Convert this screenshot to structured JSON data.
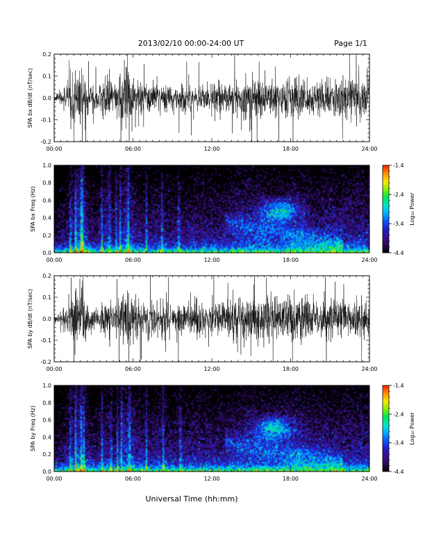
{
  "header": {
    "title": "2013/02/10  00:00-24:00 UT",
    "page": "Page 1/1"
  },
  "xlabel": "Universal Time (hh:mm)",
  "colors": {
    "trace": "#000000",
    "colormap": [
      "#000000",
      "#2a0a55",
      "#3a1290",
      "#2020c8",
      "#0a5aff",
      "#00b4ff",
      "#00e6c8",
      "#00e650",
      "#8cf000",
      "#ffe600",
      "#ff8c00",
      "#ff1e00"
    ]
  },
  "chart_data": [
    {
      "type": "line",
      "ylabel": "SPA bx dB/dt (nT/sec)",
      "xlim": [
        0,
        24
      ],
      "ylim": [
        -0.2,
        0.2
      ],
      "x_ticks": [
        "00:00",
        "06:00",
        "12:00",
        "18:00",
        "24:00"
      ],
      "x_tick_values": [
        0,
        6,
        12,
        18,
        24
      ],
      "y_ticks": [
        "-0.2",
        "-0.1",
        "0.0",
        "0.1",
        "0.2"
      ],
      "y_tick_values": [
        -0.2,
        -0.1,
        0.0,
        0.1,
        0.2
      ],
      "envelope": {
        "hours": [
          0,
          0.5,
          1,
          1.5,
          1.8,
          2.2,
          2.6,
          3.2,
          4,
          4.6,
          5.2,
          5.6,
          6.2,
          7,
          8,
          9,
          10,
          11,
          12,
          13,
          14,
          15,
          16,
          17,
          18,
          19,
          20,
          21,
          22,
          23,
          24
        ],
        "amplitude": [
          0.01,
          0.04,
          0.07,
          0.14,
          0.2,
          0.2,
          0.09,
          0.06,
          0.14,
          0.07,
          0.15,
          0.2,
          0.09,
          0.08,
          0.1,
          0.07,
          0.08,
          0.09,
          0.09,
          0.09,
          0.12,
          0.13,
          0.13,
          0.1,
          0.13,
          0.14,
          0.1,
          0.12,
          0.12,
          0.12,
          0.12
        ]
      }
    },
    {
      "type": "heatmap",
      "ylabel": "SPA bx Freq (Hz)",
      "xlim": [
        0,
        24
      ],
      "ylim": [
        0,
        1.0
      ],
      "x_ticks": [
        "00:00",
        "06:00",
        "12:00",
        "18:00",
        "24:00"
      ],
      "x_tick_values": [
        0,
        6,
        12,
        18,
        24
      ],
      "y_ticks": [
        "0.0",
        "0.2",
        "0.4",
        "0.6",
        "0.8",
        "1.0"
      ],
      "y_tick_values": [
        0,
        0.2,
        0.4,
        0.6,
        0.8,
        1.0
      ],
      "colorbar": {
        "label": "Log₁₀ Power",
        "range": [
          -4.4,
          -1.4
        ],
        "ticks": [
          "-1.4",
          "-2.4",
          "-3.4",
          "-4.4"
        ],
        "tick_values": [
          -1.4,
          -2.4,
          -3.4,
          -4.4
        ]
      },
      "features": {
        "vertical_bursts_hours": [
          1.2,
          1.6,
          2.0,
          2.1,
          3.6,
          4.2,
          4.7,
          5.0,
          5.6,
          7.0,
          8.2,
          9.5
        ],
        "enhanced_blob": {
          "hour": 17.2,
          "freq_hz": 0.48,
          "log_power": -2.6
        }
      }
    },
    {
      "type": "line",
      "ylabel": "SPA by dB/dt (nT/sec)",
      "xlim": [
        0,
        24
      ],
      "ylim": [
        -0.2,
        0.2
      ],
      "x_ticks": [
        "00:00",
        "06:00",
        "12:00",
        "18:00",
        "24:00"
      ],
      "x_tick_values": [
        0,
        6,
        12,
        18,
        24
      ],
      "y_ticks": [
        "-0.2",
        "-0.1",
        "0.0",
        "0.1",
        "0.2"
      ],
      "y_tick_values": [
        -0.2,
        -0.1,
        0.0,
        0.1,
        0.2
      ],
      "envelope": {
        "hours": [
          0,
          0.5,
          1,
          1.5,
          1.8,
          2.2,
          2.6,
          3.2,
          4,
          4.6,
          5.2,
          5.6,
          6.2,
          7,
          8,
          9,
          10,
          11,
          12,
          13,
          14,
          15,
          16,
          17,
          18,
          19,
          20,
          21,
          22,
          23,
          24
        ],
        "amplitude": [
          0.02,
          0.04,
          0.09,
          0.15,
          0.2,
          0.18,
          0.08,
          0.06,
          0.13,
          0.07,
          0.16,
          0.2,
          0.12,
          0.1,
          0.12,
          0.08,
          0.1,
          0.11,
          0.1,
          0.1,
          0.12,
          0.13,
          0.14,
          0.12,
          0.14,
          0.15,
          0.12,
          0.12,
          0.12,
          0.12,
          0.12
        ]
      }
    },
    {
      "type": "heatmap",
      "ylabel": "SPA by Freq (Hz)",
      "xlim": [
        0,
        24
      ],
      "ylim": [
        0,
        1.0
      ],
      "x_ticks": [
        "00:00",
        "06:00",
        "12:00",
        "18:00",
        "24:00"
      ],
      "x_tick_values": [
        0,
        6,
        12,
        18,
        24
      ],
      "y_ticks": [
        "0.0",
        "0.2",
        "0.4",
        "0.6",
        "0.8",
        "1.0"
      ],
      "y_tick_values": [
        0,
        0.2,
        0.4,
        0.6,
        0.8,
        1.0
      ],
      "colorbar": {
        "label": "Log₁₀ Power",
        "range": [
          -4.4,
          -1.4
        ],
        "ticks": [
          "-1.4",
          "-2.4",
          "-3.4",
          "-4.4"
        ],
        "tick_values": [
          -1.4,
          -2.4,
          -3.4,
          -4.4
        ]
      },
      "features": {
        "vertical_bursts_hours": [
          1.2,
          1.6,
          2.0,
          2.2,
          3.6,
          4.3,
          4.8,
          5.1,
          5.7,
          7.0,
          8.3,
          9.6
        ],
        "enhanced_blob": {
          "hour": 16.8,
          "freq_hz": 0.5,
          "log_power": -2.6
        }
      }
    }
  ]
}
